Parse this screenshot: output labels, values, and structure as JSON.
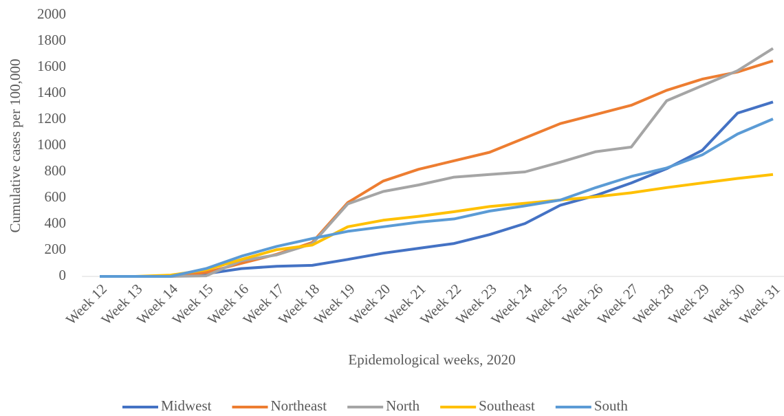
{
  "chart_data": {
    "type": "line",
    "y_label": "Cumulative cases per 100,000",
    "x_label": "Epidemological weeks, 2020",
    "categories": [
      "Week 12",
      "Week 13",
      "Week 14",
      "Week 15",
      "Week 16",
      "Week 17",
      "Week 18",
      "Week 19",
      "Week 20",
      "Week 21",
      "Week 22",
      "Week 23",
      "Week 24",
      "Week 25",
      "Week 26",
      "Week 27",
      "Week 28",
      "Week 29",
      "Week 30",
      "Week 31"
    ],
    "series": [
      {
        "name": "Midwest",
        "color": "#4472c4",
        "values": [
          0,
          0,
          0,
          20,
          60,
          78,
          85,
          130,
          178,
          215,
          252,
          320,
          405,
          545,
          620,
          715,
          825,
          965,
          1250,
          1335
        ]
      },
      {
        "name": "Northeast",
        "color": "#ed7d31",
        "values": [
          0,
          0,
          0,
          30,
          100,
          170,
          260,
          565,
          730,
          820,
          885,
          950,
          1060,
          1170,
          1240,
          1310,
          1425,
          1510,
          1565,
          1650
        ]
      },
      {
        "name": "North",
        "color": "#a5a5a5",
        "values": [
          0,
          0,
          0,
          5,
          120,
          165,
          250,
          555,
          650,
          700,
          760,
          780,
          800,
          875,
          955,
          990,
          1345,
          1460,
          1575,
          1745
        ]
      },
      {
        "name": "Southeast",
        "color": "#ffc000",
        "values": [
          0,
          0,
          10,
          50,
          130,
          205,
          240,
          380,
          430,
          460,
          495,
          535,
          560,
          585,
          610,
          640,
          680,
          715,
          750,
          780
        ]
      },
      {
        "name": "South",
        "color": "#5b9bd5",
        "values": [
          0,
          0,
          0,
          60,
          155,
          230,
          290,
          345,
          380,
          415,
          440,
          500,
          540,
          585,
          680,
          765,
          830,
          930,
          1090,
          1205
        ]
      }
    ],
    "ylim": [
      0,
      2000
    ],
    "yticks": [
      0,
      200,
      400,
      600,
      800,
      1000,
      1200,
      1400,
      1600,
      1800,
      2000
    ],
    "grid": false,
    "legend": "bottom"
  }
}
